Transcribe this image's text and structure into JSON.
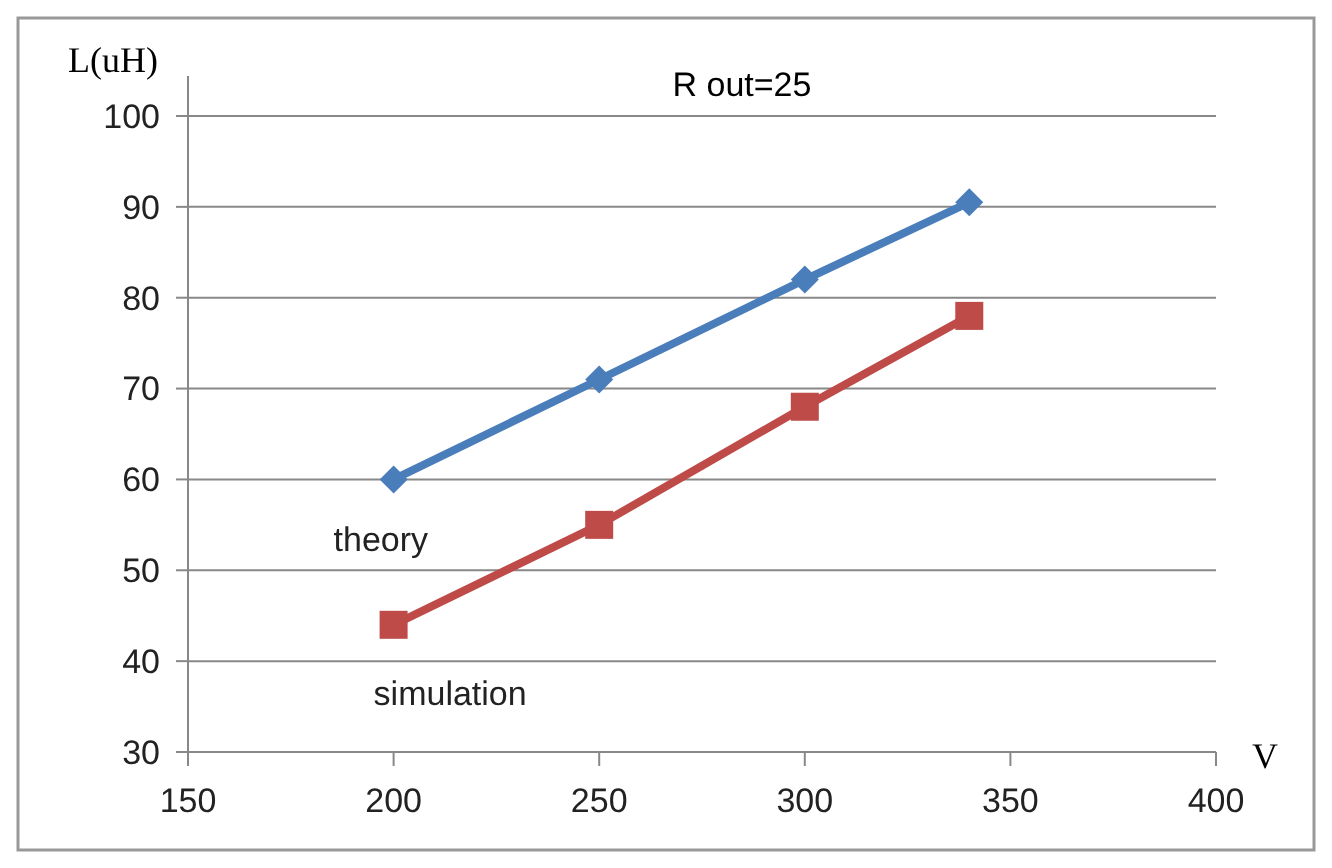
{
  "chart_data": {
    "type": "line",
    "title": "R out=25",
    "xlabel": "V",
    "ylabel": "L(uH)",
    "x": [
      200,
      250,
      300,
      340
    ],
    "series": [
      {
        "name": "theory",
        "color": "#4a7ebb",
        "values": [
          60,
          71,
          82,
          90.5
        ],
        "marker": "diamond"
      },
      {
        "name": "simulation",
        "color": "#be4b48",
        "values": [
          44,
          55,
          68,
          78
        ],
        "marker": "square"
      }
    ],
    "xlim": [
      150,
      400
    ],
    "xticks": [
      150,
      200,
      250,
      300,
      350,
      400
    ],
    "ylim": [
      30,
      100
    ],
    "yticks": [
      30,
      40,
      50,
      60,
      70,
      80,
      90,
      100
    ],
    "grid": "y",
    "line_style": "solid"
  }
}
